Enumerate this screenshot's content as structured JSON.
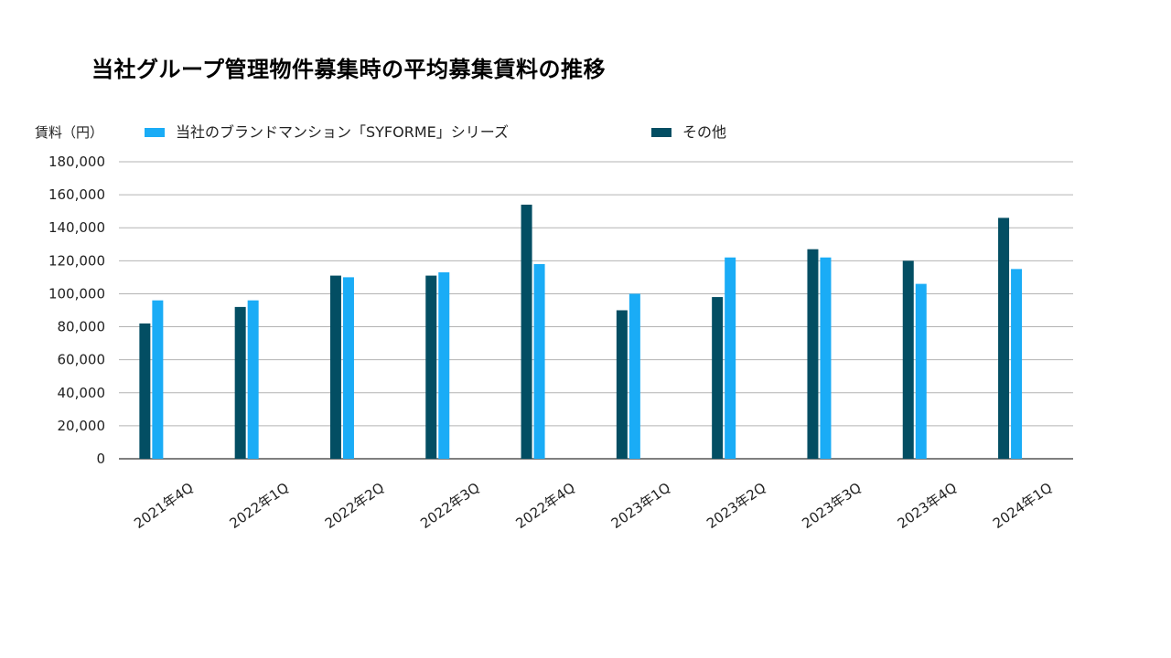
{
  "page": {
    "title": "当社グループ管理物件募集時の平均募集賃料の推移"
  },
  "chart_data": {
    "type": "bar",
    "title": "当社グループ管理物件募集時の平均募集賃料の推移",
    "ylabel": "賃料（円）",
    "xlabel": "",
    "ylim": [
      0,
      180000
    ],
    "yticks": [
      0,
      20000,
      40000,
      60000,
      80000,
      100000,
      120000,
      140000,
      160000,
      180000
    ],
    "ytick_labels": [
      "0",
      "20,000",
      "40,000",
      "60,000",
      "80,000",
      "100,000",
      "120,000",
      "140,000",
      "160,000",
      "180,000"
    ],
    "grid": true,
    "legend_position": "top",
    "categories": [
      "2021年4Q",
      "2022年1Q",
      "2022年2Q",
      "2022年3Q",
      "2022年4Q",
      "2023年1Q",
      "2023年2Q",
      "2023年3Q",
      "2023年4Q",
      "2024年1Q"
    ],
    "series": [
      {
        "name": "その他",
        "color": "#034e63",
        "values": [
          82000,
          92000,
          111000,
          111000,
          154000,
          90000,
          98000,
          127000,
          120000,
          146000
        ]
      },
      {
        "name": "当社のブランドマンション「SYFORME」シリーズ",
        "color": "#1aacf6",
        "values": [
          96000,
          96000,
          110000,
          113000,
          118000,
          100000,
          122000,
          122000,
          106000,
          115000
        ]
      }
    ]
  }
}
